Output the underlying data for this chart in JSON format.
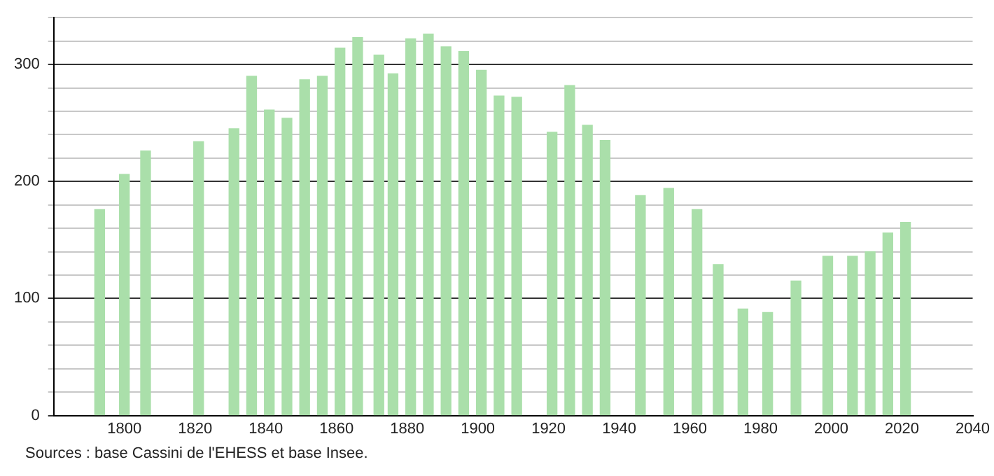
{
  "chart_data": {
    "type": "bar",
    "x": [
      1793,
      1800,
      1806,
      1821,
      1831,
      1836,
      1841,
      1846,
      1851,
      1856,
      1861,
      1866,
      1872,
      1876,
      1881,
      1886,
      1891,
      1896,
      1901,
      1906,
      1911,
      1921,
      1926,
      1931,
      1936,
      1946,
      1954,
      1962,
      1968,
      1975,
      1982,
      1990,
      1999,
      2006,
      2011,
      2016,
      2021
    ],
    "values": [
      176,
      206,
      226,
      234,
      245,
      290,
      261,
      254,
      287,
      290,
      314,
      323,
      308,
      292,
      322,
      326,
      315,
      311,
      295,
      273,
      272,
      242,
      282,
      248,
      235,
      188,
      194,
      176,
      129,
      91,
      88,
      115,
      136,
      136,
      140,
      156,
      165
    ],
    "color": "#aadfaa",
    "xlim": [
      1780,
      2040
    ],
    "xticks": [
      1800,
      1820,
      1840,
      1860,
      1880,
      1900,
      1920,
      1940,
      1960,
      1980,
      2000,
      2020,
      2040
    ],
    "ylim": [
      0,
      340
    ],
    "yticks": [
      0,
      {
        "value": 20,
        "label": null
      },
      {
        "value": 40,
        "label": null
      },
      {
        "value": 60,
        "label": null
      },
      {
        "value": 80,
        "label": null
      },
      100,
      {
        "value": 120,
        "label": null
      },
      {
        "value": 140,
        "label": null
      },
      {
        "value": 160,
        "label": null
      },
      {
        "value": 180,
        "label": null
      },
      200,
      {
        "value": 220,
        "label": null
      },
      {
        "value": 240,
        "label": null
      },
      {
        "value": 260,
        "label": null
      },
      {
        "value": 280,
        "label": null
      },
      300,
      {
        "value": 320,
        "label": null
      },
      {
        "value": 340,
        "label": null
      }
    ],
    "grid": "y",
    "annotations": [
      "Sources : base Cassini de l'EHESS et base Insee."
    ]
  }
}
